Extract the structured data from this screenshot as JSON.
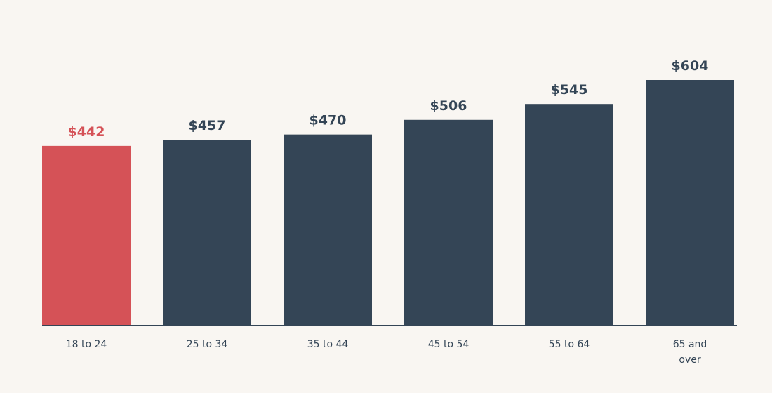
{
  "chart_data": {
    "type": "bar",
    "title": "",
    "xlabel": "",
    "ylabel": "",
    "value_prefix": "$",
    "categories": [
      [
        "18 to 24"
      ],
      [
        "25 to 34"
      ],
      [
        "35 to 44"
      ],
      [
        "45 to 54"
      ],
      [
        "55 to 64"
      ],
      [
        "65 and",
        "over"
      ]
    ],
    "values": [
      442,
      457,
      470,
      506,
      545,
      604
    ],
    "highlight_index": 0,
    "ylim": [
      0,
      604
    ],
    "grid": false,
    "legend": "none",
    "colors": {
      "bar": "#344556",
      "highlight": "#d55257",
      "axis": "#344556",
      "tick_text": "#344556",
      "background": "#f9f6f2"
    }
  }
}
